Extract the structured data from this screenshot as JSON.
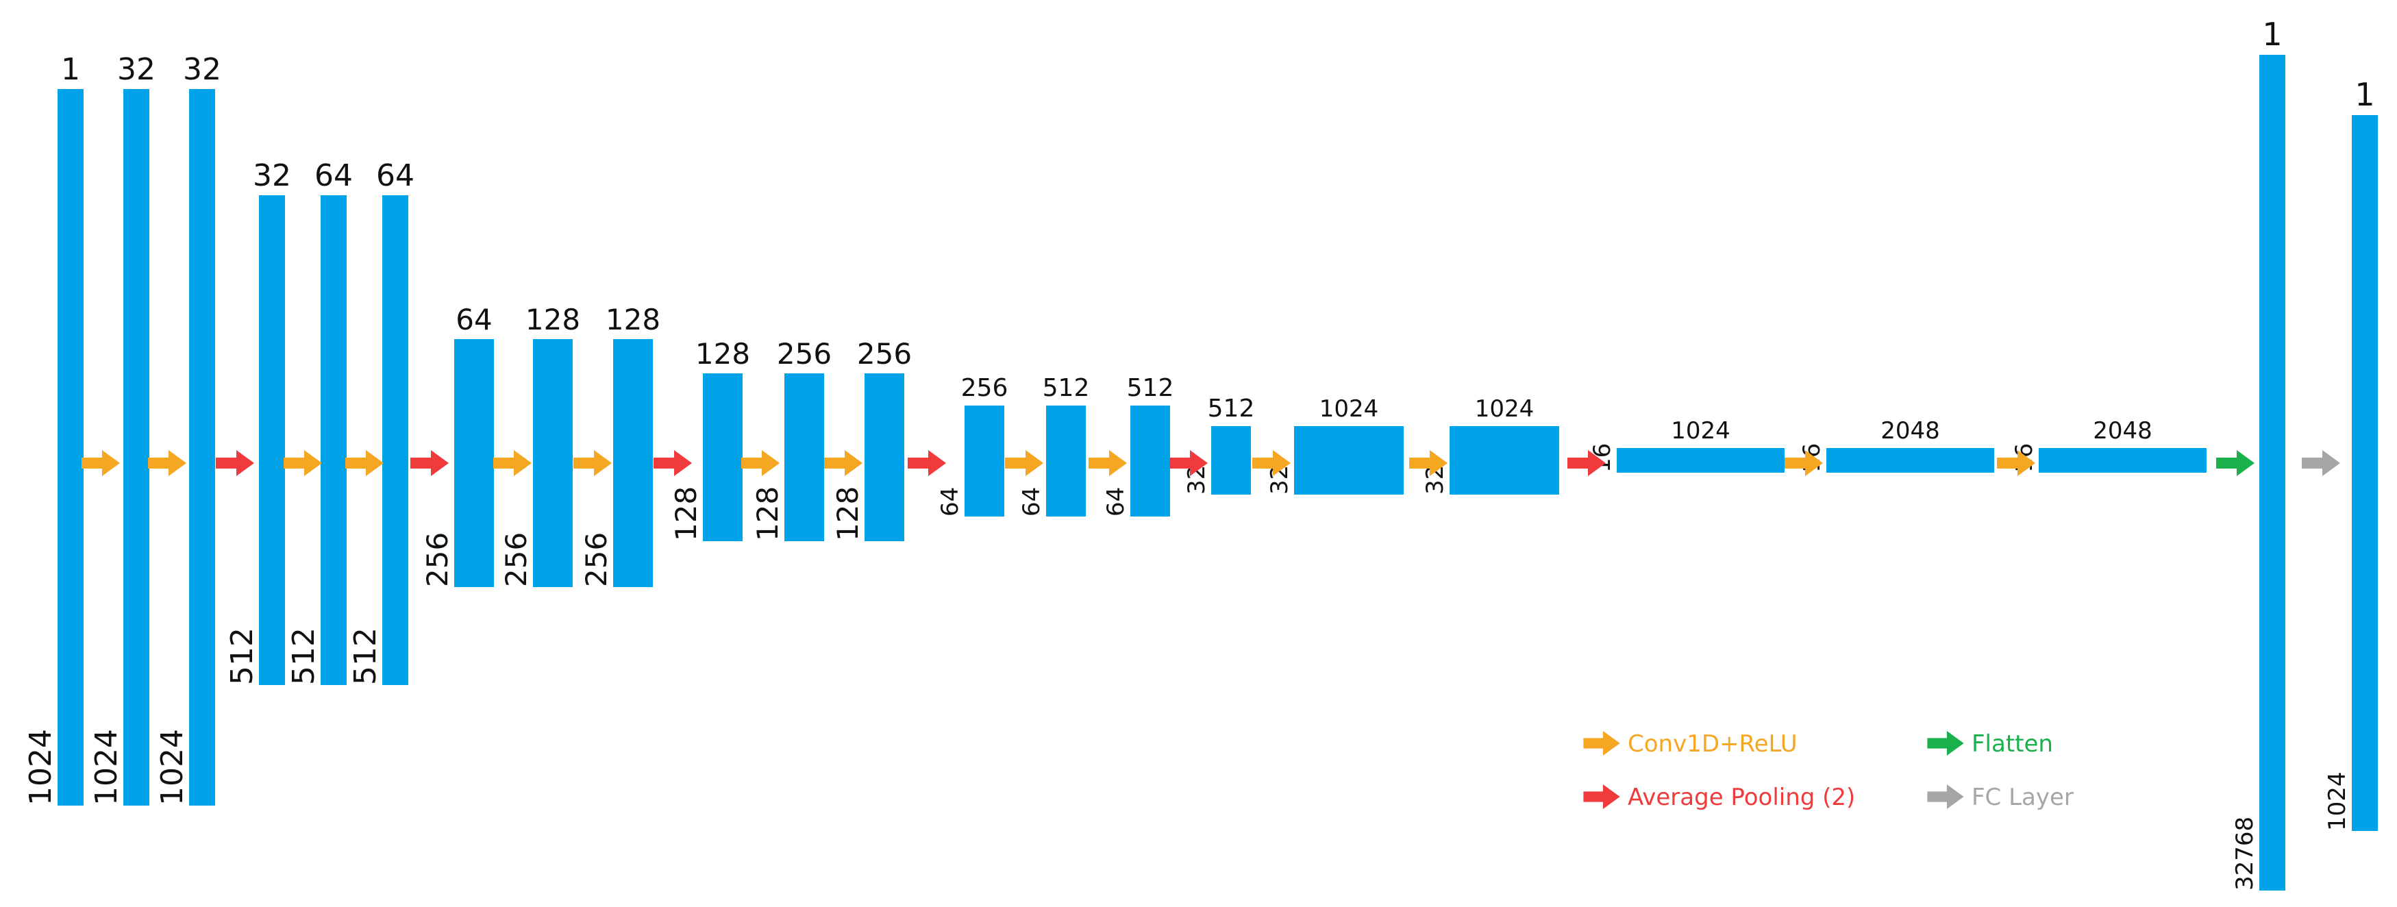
{
  "diagram": {
    "blocks": [
      {
        "id": "b1",
        "top_label": "1",
        "side_label": "1024"
      },
      {
        "id": "b2",
        "top_label": "32",
        "side_label": "1024"
      },
      {
        "id": "b3",
        "top_label": "32",
        "side_label": "1024"
      },
      {
        "id": "b4",
        "top_label": "32",
        "side_label": "512"
      },
      {
        "id": "b5",
        "top_label": "64",
        "side_label": "512"
      },
      {
        "id": "b6",
        "top_label": "64",
        "side_label": "512"
      },
      {
        "id": "b7",
        "top_label": "64",
        "side_label": "256"
      },
      {
        "id": "b8",
        "top_label": "128",
        "side_label": "256"
      },
      {
        "id": "b9",
        "top_label": "128",
        "side_label": "256"
      },
      {
        "id": "b10",
        "top_label": "128",
        "side_label": "128"
      },
      {
        "id": "b11",
        "top_label": "256",
        "side_label": "128"
      },
      {
        "id": "b12",
        "top_label": "256",
        "side_label": "128"
      },
      {
        "id": "b13",
        "top_label": "256",
        "side_label": "64"
      },
      {
        "id": "b14",
        "top_label": "512",
        "side_label": "64"
      },
      {
        "id": "b15",
        "top_label": "512",
        "side_label": "64"
      },
      {
        "id": "b16",
        "top_label": "512",
        "side_label": "32"
      },
      {
        "id": "b17",
        "top_label": "1024",
        "side_label": "32"
      },
      {
        "id": "b18",
        "top_label": "1024",
        "side_label": "32"
      },
      {
        "id": "b19",
        "top_label": "1024",
        "side_label": "16"
      },
      {
        "id": "b20",
        "top_label": "2048",
        "side_label": "16"
      },
      {
        "id": "b21",
        "top_label": "2048",
        "side_label": "16"
      },
      {
        "id": "b22",
        "top_label": "1",
        "side_label": "32768"
      },
      {
        "id": "b23",
        "top_label": "1",
        "side_label": "1024"
      }
    ],
    "arrows": [
      "conv",
      "conv",
      "pool",
      "conv",
      "conv",
      "pool",
      "conv",
      "conv",
      "pool",
      "conv",
      "conv",
      "pool",
      "conv",
      "conv",
      "pool",
      "conv",
      "conv",
      "pool",
      "conv",
      "conv",
      "flatten",
      "fc"
    ],
    "legend": [
      {
        "type": "conv",
        "label": "Conv1D+ReLU"
      },
      {
        "type": "flatten",
        "label": "Flatten"
      },
      {
        "type": "pool",
        "label": "Average Pooling  (2)"
      },
      {
        "type": "fc",
        "label": "FC Layer"
      }
    ],
    "colors": {
      "block": "#00a2e8",
      "conv": "#f5a623",
      "pool": "#ef3b3b",
      "flatten": "#1ab04c",
      "fc": "#a6a6a6"
    }
  }
}
